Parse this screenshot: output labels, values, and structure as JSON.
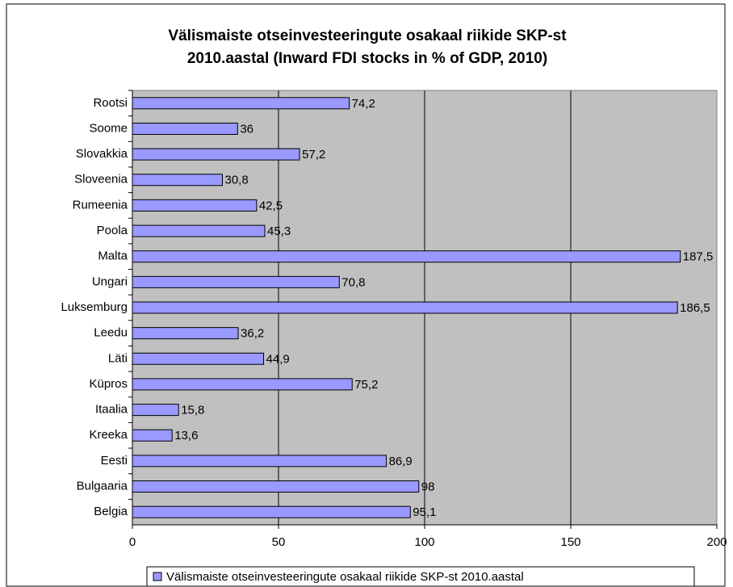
{
  "chart_data": {
    "type": "barh",
    "title": [
      "Välismaiste otseinvesteeringute osakaal riikide SKP-st",
      "2010.aastal (Inward FDI stocks in % of GDP, 2010)"
    ],
    "categories": [
      "Rootsi",
      "Soome",
      "Slovakkia",
      "Sloveenia",
      "Rumeenia",
      "Poola",
      "Malta",
      "Ungari",
      "Luksemburg",
      "Leedu",
      "Läti",
      "Küpros",
      "Itaalia",
      "Kreeka",
      "Eesti",
      "Bulgaaria",
      "Belgia"
    ],
    "series": [
      {
        "name": "Välismaiste otseinvesteeringute osakaal riikide SKP-st  2010.aastal",
        "color": "#9999ff",
        "values": [
          74.2,
          36,
          57.2,
          30.8,
          42.5,
          45.3,
          187.5,
          70.8,
          186.5,
          36.2,
          44.9,
          75.2,
          15.8,
          13.6,
          86.9,
          98,
          95.1
        ],
        "value_labels": [
          "74,2",
          "36",
          "57,2",
          "30,8",
          "42,5",
          "45,3",
          "187,5",
          "70,8",
          "186,5",
          "36,2",
          "44,9",
          "75,2",
          "15,8",
          "13,6",
          "86,9",
          "98",
          "95,1"
        ]
      }
    ],
    "xlim": [
      0,
      200
    ],
    "xticks": [
      0,
      50,
      100,
      150,
      200
    ],
    "grid": true,
    "legend": "bottom"
  }
}
